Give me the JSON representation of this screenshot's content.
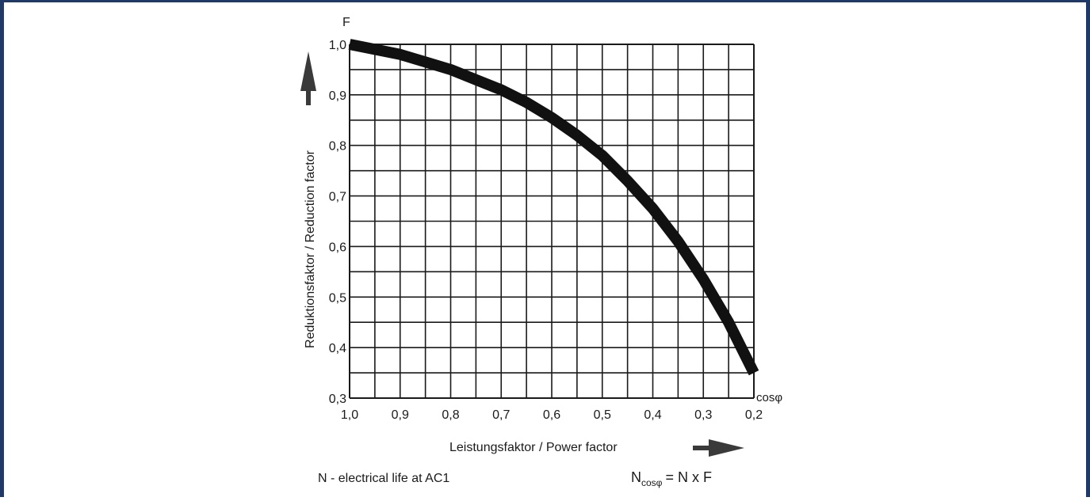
{
  "colors": {
    "frame": "#1f3a68",
    "grid": "#1a1a1a",
    "curve": "#111111",
    "text": "#1a1a1a"
  },
  "chart_data": {
    "type": "line",
    "title": "",
    "y_axis_symbol": "F",
    "x_axis_symbol": "cosφ",
    "ylabel": "Reduktionsfaktor / Reduction factor",
    "xlabel": "Leistungsfaktor / Power factor",
    "x_reversed": true,
    "xlim": [
      1.0,
      0.2
    ],
    "ylim": [
      0.3,
      1.0
    ],
    "grid": true,
    "x_ticks": [
      "1,0",
      "0,9",
      "0,8",
      "0,7",
      "0,6",
      "0,5",
      "0,4",
      "0,3",
      "0,2"
    ],
    "y_ticks": [
      "0,3",
      "0,4",
      "0,5",
      "0,6",
      "0,7",
      "0,8",
      "0,9",
      "1,0"
    ],
    "series": [
      {
        "x": [
          1.0,
          0.95,
          0.9,
          0.85,
          0.8,
          0.75,
          0.7,
          0.65,
          0.6,
          0.55,
          0.5,
          0.45,
          0.4,
          0.35,
          0.3,
          0.25,
          0.2
        ],
        "y": [
          1.0,
          0.99,
          0.98,
          0.965,
          0.95,
          0.93,
          0.91,
          0.885,
          0.855,
          0.82,
          0.78,
          0.73,
          0.675,
          0.61,
          0.535,
          0.45,
          0.35
        ]
      }
    ],
    "annotations": {
      "note": "N - electrical life at AC1",
      "formula_main": "N",
      "formula_sub": "cosφ",
      "formula_rest": "= N x F"
    }
  }
}
